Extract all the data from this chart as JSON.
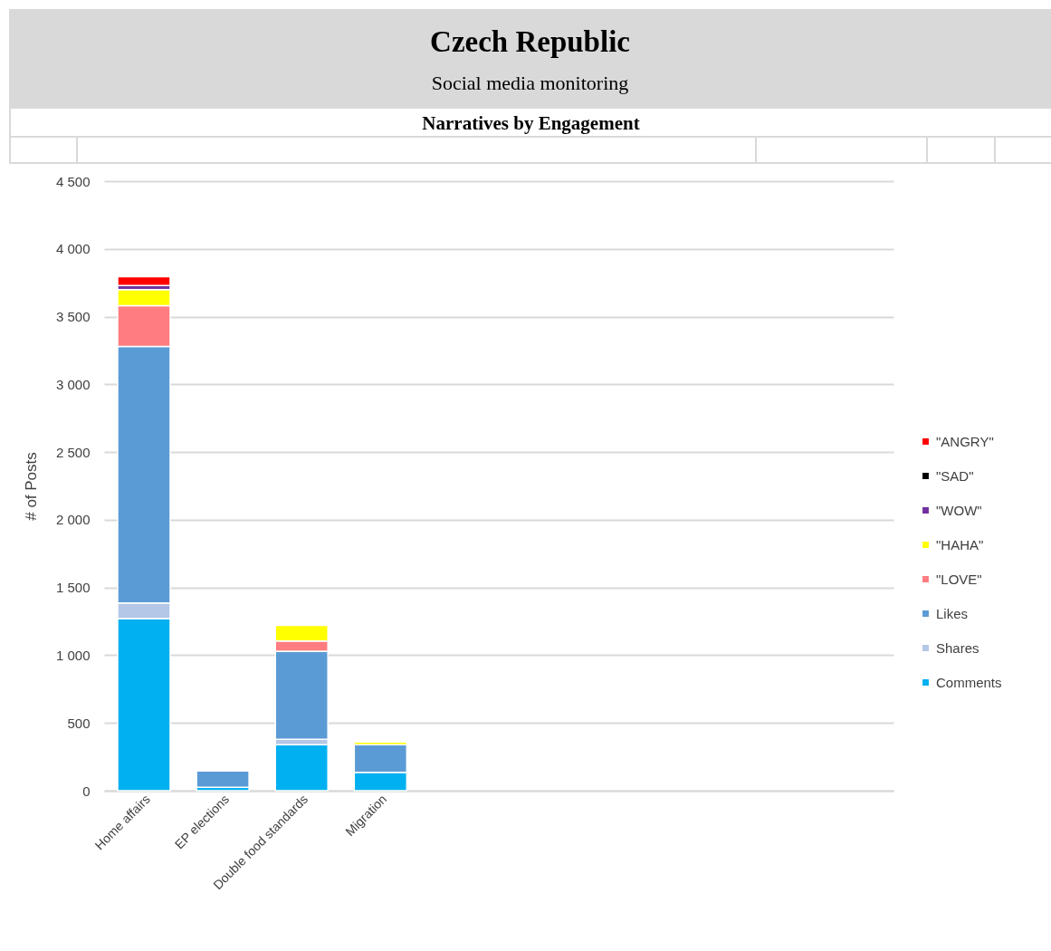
{
  "chart_data": {
    "type": "bar",
    "title": "Czech Republic",
    "subtitle": "Social media monitoring",
    "annotations": [
      "Narratives by Engagement"
    ],
    "ylabel": "# of Posts",
    "categories": [
      "Home affairs",
      "EP elections",
      "Double food standards",
      "Migration",
      null,
      null,
      null,
      null,
      null,
      null
    ],
    "stacked": true,
    "series": [
      {
        "name": "Comments",
        "color": "#00b0f0",
        "values": [
          1270,
          25,
          340,
          135,
          null,
          null,
          null,
          null,
          null,
          null
        ]
      },
      {
        "name": "Shares",
        "color": "#b4c7e7",
        "values": [
          115,
          null,
          40,
          null,
          null,
          null,
          null,
          null,
          null,
          null
        ]
      },
      {
        "name": "Likes",
        "color": "#5b9bd5",
        "values": [
          1895,
          120,
          650,
          205,
          null,
          null,
          null,
          null,
          null,
          null
        ]
      },
      {
        "name": "\"LOVE\"",
        "color": "#ff7c80",
        "values": [
          300,
          null,
          75,
          null,
          null,
          null,
          null,
          null,
          null,
          null
        ]
      },
      {
        "name": "\"HAHA\"",
        "color": "#ffff00",
        "values": [
          120,
          null,
          115,
          20,
          null,
          null,
          null,
          null,
          null,
          null
        ]
      },
      {
        "name": "\"WOW\"",
        "color": "#7030a0",
        "values": [
          30,
          null,
          null,
          null,
          null,
          null,
          null,
          null,
          null,
          null
        ]
      },
      {
        "name": "\"SAD\"",
        "color": "#000000",
        "values": [
          null,
          null,
          null,
          null,
          null,
          null,
          null,
          null,
          null,
          null
        ]
      },
      {
        "name": "\"ANGRY\"",
        "color": "#ff0000",
        "values": [
          65,
          null,
          null,
          null,
          null,
          null,
          null,
          null,
          null,
          null
        ]
      }
    ],
    "ylim": [
      0,
      4500
    ],
    "yticks": [
      0,
      500,
      {
        "value": 1000,
        "label": "1 000"
      },
      {
        "value": 1500,
        "label": "1 500"
      },
      {
        "value": 2000,
        "label": "2 000"
      },
      {
        "value": 2500,
        "label": "2 500"
      },
      {
        "value": 3000,
        "label": "3 000"
      },
      {
        "value": 3500,
        "label": "3 500"
      },
      {
        "value": 4000,
        "label": "4 000"
      },
      {
        "value": 4500,
        "label": "4 500"
      }
    ],
    "grid": "y",
    "legend": "right"
  }
}
